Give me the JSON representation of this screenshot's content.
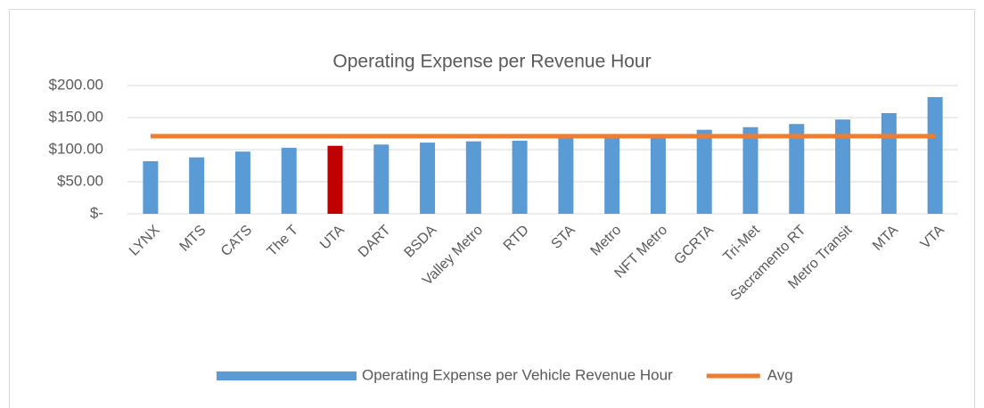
{
  "chart_data": {
    "type": "bar",
    "title": "Operating Expense per Revenue Hour",
    "categories": [
      "LYNX",
      "MTS",
      "CATS",
      "The T",
      "UTA",
      "DART",
      "BSDA",
      "Valley Metro",
      "RTD",
      "STA",
      "Metro",
      "NFT Metro",
      "GCRTA",
      "Tri-Met",
      "Sacramento RT",
      "Metro Transit",
      "MTA",
      "VTA"
    ],
    "series": [
      {
        "name": "Operating Expense per Vehicle Revenue Hour",
        "type": "bar",
        "color": "#5b9bd5",
        "colors": [
          "#5b9bd5",
          "#5b9bd5",
          "#5b9bd5",
          "#5b9bd5",
          "#c00000",
          "#5b9bd5",
          "#5b9bd5",
          "#5b9bd5",
          "#5b9bd5",
          "#5b9bd5",
          "#5b9bd5",
          "#5b9bd5",
          "#5b9bd5",
          "#5b9bd5",
          "#5b9bd5",
          "#5b9bd5",
          "#5b9bd5",
          "#5b9bd5"
        ],
        "values": [
          82,
          88,
          97,
          103,
          106,
          108,
          111,
          113,
          114,
          121,
          121,
          121,
          131,
          135,
          140,
          147,
          157,
          182
        ]
      },
      {
        "name": "Avg",
        "type": "line",
        "color": "#ed7d31",
        "values": [
          121,
          121,
          121,
          121,
          121,
          121,
          121,
          121,
          121,
          121,
          121,
          121,
          121,
          121,
          121,
          121,
          121,
          121
        ]
      }
    ],
    "ylim": [
      0,
      200
    ],
    "yticks": [
      {
        "value": 0,
        "label": "$-"
      },
      {
        "value": 50,
        "label": "$50.00"
      },
      {
        "value": 100,
        "label": "$100.00"
      },
      {
        "value": 150,
        "label": "$150.00"
      },
      {
        "value": 200,
        "label": "$200.00"
      }
    ],
    "grid": true,
    "legend": "bottom"
  }
}
